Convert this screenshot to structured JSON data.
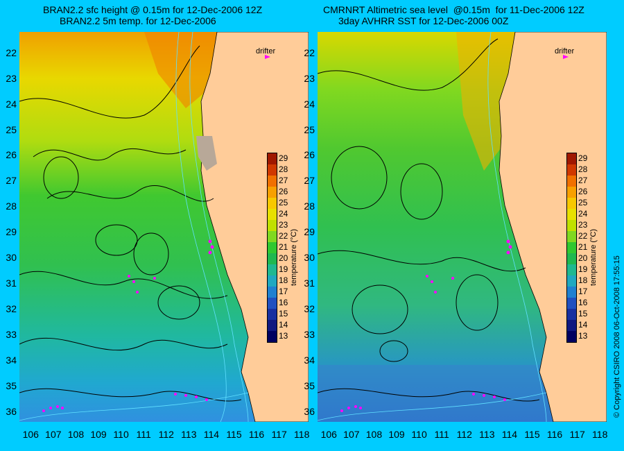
{
  "panels": [
    {
      "title_line1": "BRAN2.2 sfc height @ 0.15m for 12-Dec-2006 12Z",
      "title_line2": "BRAN2.2 5m temp. for 12-Dec-2006",
      "drifter_label": "drifter"
    },
    {
      "title_line1": "CMRNRT Altimetric sea level  @0.15m  for 11-Dec-2006 12Z",
      "title_line2": "3day AVHRR SST for 12-Dec-2006 00Z",
      "drifter_label": "drifter"
    }
  ],
  "map_data": {
    "lon_ticks": [
      "106",
      "107",
      "108",
      "109",
      "110",
      "111",
      "112",
      "113",
      "114",
      "115",
      "116",
      "117",
      "118"
    ],
    "lat_ticks": [
      "22",
      "23",
      "24",
      "25",
      "26",
      "27",
      "28",
      "29",
      "30",
      "31",
      "32",
      "33",
      "34",
      "35",
      "36"
    ],
    "lon_range": [
      105.5,
      118.3
    ],
    "lat_range": [
      21.2,
      36.4
    ],
    "colorbar": {
      "label": "temperature (°C)",
      "ticks": [
        "29",
        "28",
        "27",
        "26",
        "25",
        "24",
        "23",
        "22",
        "21",
        "20",
        "19",
        "18",
        "17",
        "16",
        "15",
        "14",
        "13"
      ],
      "colors": [
        "#a01800",
        "#d03800",
        "#f07000",
        "#f8a000",
        "#f8c800",
        "#e8e000",
        "#c0e000",
        "#80d820",
        "#30c830",
        "#20b850",
        "#20b890",
        "#20a8c0",
        "#2080d0",
        "#2050c0",
        "#1830a0",
        "#101880",
        "#000060"
      ]
    }
  },
  "copyright": "© Copyright CSIRO 2008   06-Oct-2008 17:55:15"
}
